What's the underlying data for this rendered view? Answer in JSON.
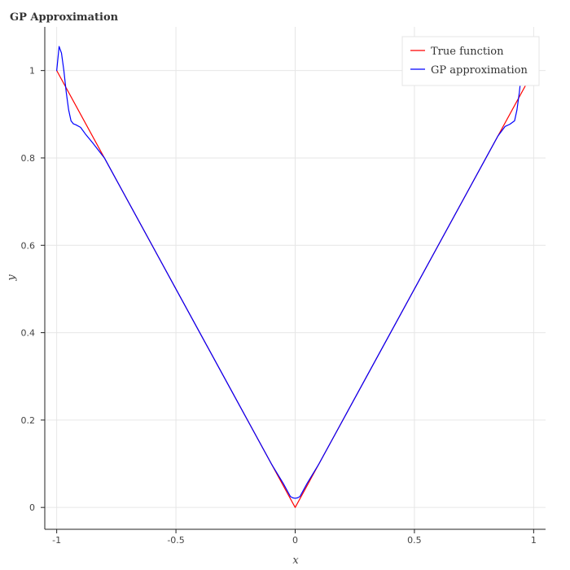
{
  "chart_data": {
    "type": "line",
    "title": "GP Approximation",
    "xlabel": "x",
    "ylabel": "y",
    "xlim": [
      -1.05,
      1.05
    ],
    "ylim": [
      -0.05,
      1.1
    ],
    "grid": true,
    "legend_position": "top-right",
    "x_ticks": [
      {
        "value": -1,
        "label": "-1"
      },
      {
        "value": -0.5,
        "label": "-0.5"
      },
      {
        "value": 0,
        "label": "0"
      },
      {
        "value": 0.5,
        "label": "0.5"
      },
      {
        "value": 1,
        "label": "1"
      }
    ],
    "y_ticks": [
      {
        "value": 0,
        "label": "0"
      },
      {
        "value": 0.2,
        "label": "0.2"
      },
      {
        "value": 0.4,
        "label": "0.4"
      },
      {
        "value": 0.6,
        "label": "0.6"
      },
      {
        "value": 0.8,
        "label": "0.8"
      },
      {
        "value": 1,
        "label": "1"
      }
    ],
    "series": [
      {
        "name": "True function",
        "color": "#ff0000",
        "x": [
          -1.0,
          0.0,
          1.0
        ],
        "y": [
          1.0,
          0.0,
          1.0
        ]
      },
      {
        "name": "GP approximation",
        "color": "#0000ff",
        "x": [
          -1.0,
          -0.99,
          -0.98,
          -0.97,
          -0.96,
          -0.95,
          -0.94,
          -0.93,
          -0.92,
          -0.9,
          -0.88,
          -0.85,
          -0.8,
          -0.7,
          -0.6,
          -0.5,
          -0.4,
          -0.3,
          -0.2,
          -0.1,
          -0.05,
          -0.03,
          -0.02,
          -0.01,
          0.0,
          0.01,
          0.02,
          0.03,
          0.05,
          0.1,
          0.2,
          0.3,
          0.4,
          0.5,
          0.6,
          0.7,
          0.8,
          0.85,
          0.88,
          0.9,
          0.92,
          0.93,
          0.94,
          0.95,
          0.96,
          0.97,
          0.98
        ],
        "y": [
          1.0,
          1.055,
          1.04,
          1.0,
          0.95,
          0.91,
          0.885,
          0.878,
          0.876,
          0.87,
          0.855,
          0.835,
          0.8,
          0.7,
          0.6,
          0.5,
          0.4,
          0.3,
          0.2,
          0.1,
          0.055,
          0.035,
          0.025,
          0.022,
          0.021,
          0.022,
          0.025,
          0.035,
          0.055,
          0.1,
          0.2,
          0.3,
          0.4,
          0.5,
          0.6,
          0.7,
          0.8,
          0.85,
          0.872,
          0.877,
          0.885,
          0.91,
          0.95,
          1.0,
          1.04,
          1.055,
          1.035
        ]
      }
    ]
  }
}
